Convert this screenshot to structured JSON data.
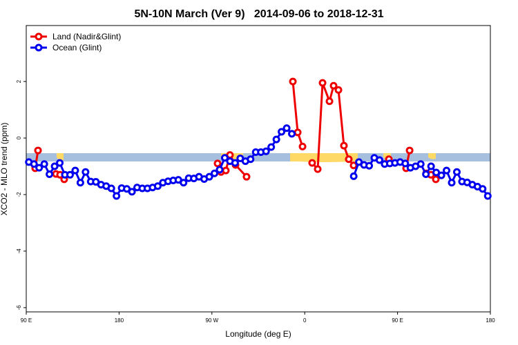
{
  "chart_data": {
    "type": "line",
    "title": "5N-10N March (Ver 9)   2014-09-06 to 2018-12-31",
    "x_label": "Longitude (deg E)",
    "y_label": "XCO2 - MLO trend (ppm)",
    "xlim": [
      90,
      540
    ],
    "ylim": [
      -6.15,
      3.98
    ],
    "xticks": [
      {
        "value": 90,
        "label": "90 E"
      },
      180,
      {
        "value": 270,
        "label": "90 W"
      },
      {
        "value": 360,
        "label": "0"
      },
      {
        "value": 450,
        "label": "90 E"
      },
      {
        "value": 540,
        "label": "180"
      }
    ],
    "yticks": [
      2,
      0,
      -2,
      -4,
      -6
    ],
    "legend": "top-left",
    "series": [
      {
        "name": "Land (Nadir&Glint)",
        "color": "#ee0000",
        "x": [
          98.7,
          101.4,
          null,
          118.8,
          122.8,
          126.8,
          null,
          275.5,
          278.8,
          283.5,
          287.5,
          292.9,
          303.6,
          null,
          348.5,
          353.2,
          357.9,
          null,
          367.2,
          372.6,
          377.3,
          384,
          388,
          392.7,
          398,
          402.7,
          407.4,
          null,
          441.6,
          null,
          458.3,
          461.7,
          null,
          477.7,
          482.4,
          487.1
        ],
        "values": [
          -1.07,
          -0.44,
          null,
          -1.27,
          -1.3,
          -1.46,
          null,
          -0.9,
          -1.2,
          -1.15,
          -0.6,
          -0.95,
          -1.37,
          null,
          2.0,
          0.2,
          -0.3,
          null,
          -0.88,
          -1.1,
          1.95,
          1.3,
          1.85,
          1.7,
          -0.27,
          -0.75,
          -0.97,
          null,
          -0.75,
          null,
          -1.07,
          -0.44,
          null,
          -1.25,
          -1.3,
          -1.46
        ]
      },
      {
        "name": "Ocean (Glint)",
        "color": "#0000ee",
        "x": [
          92.5,
          97.5,
          102.5,
          107.5,
          112.5,
          117.5,
          122.5,
          127.5,
          132.5,
          137.5,
          142.5,
          147.5,
          152.5,
          157.5,
          162.5,
          167.5,
          172.5,
          177.5,
          182.5,
          187.5,
          192.5,
          197.5,
          202.5,
          207.5,
          212.5,
          217.5,
          222.5,
          227.5,
          232.5,
          237.5,
          242.5,
          247.5,
          252.5,
          257.5,
          262.5,
          267.5,
          272.5,
          277.5,
          282.5,
          287.5,
          292.5,
          297.5,
          302.5,
          307.5,
          312.5,
          317.5,
          322.5,
          327.5,
          332.5,
          337.5,
          342.5,
          347.5,
          352.5,
          407.5,
          412.5,
          417.5,
          422.5,
          427.5,
          432.5,
          437.5,
          442.5,
          447.5,
          452.5,
          457.5,
          462.5,
          467.5,
          472.5,
          477.5,
          482.5,
          487.5,
          492.5,
          497.5,
          502.5,
          507.5,
          512.5,
          517.5,
          522.5,
          527.5,
          532.5,
          537.5
        ],
        "values": [
          -0.85,
          -0.92,
          -1.05,
          -0.92,
          -1.28,
          -1.0,
          -0.88,
          -1.3,
          -1.3,
          -1.15,
          -1.58,
          -1.2,
          -1.54,
          -1.55,
          -1.65,
          -1.7,
          -1.78,
          -2.05,
          -1.77,
          -1.8,
          -1.9,
          -1.75,
          -1.78,
          -1.78,
          -1.75,
          -1.7,
          -1.58,
          -1.53,
          -1.5,
          -1.48,
          -1.58,
          -1.42,
          -1.43,
          -1.37,
          -1.45,
          -1.37,
          -1.25,
          -1.12,
          -0.7,
          -0.82,
          -0.88,
          -0.72,
          -0.82,
          -0.75,
          -0.5,
          -0.5,
          -0.47,
          -0.32,
          -0.05,
          0.22,
          0.35,
          0.15,
          null,
          -1.35,
          -0.85,
          -0.95,
          -0.98,
          -0.7,
          -0.78,
          -0.92,
          -0.9,
          -0.88,
          -0.85,
          -0.9,
          -1.05,
          -1.0,
          -0.92,
          -1.28,
          -1.0,
          -1.22,
          -1.32,
          -1.15,
          -1.58,
          -1.2,
          -1.54,
          -1.57,
          -1.65,
          -1.72,
          -1.8,
          -2.05
        ]
      }
    ]
  }
}
